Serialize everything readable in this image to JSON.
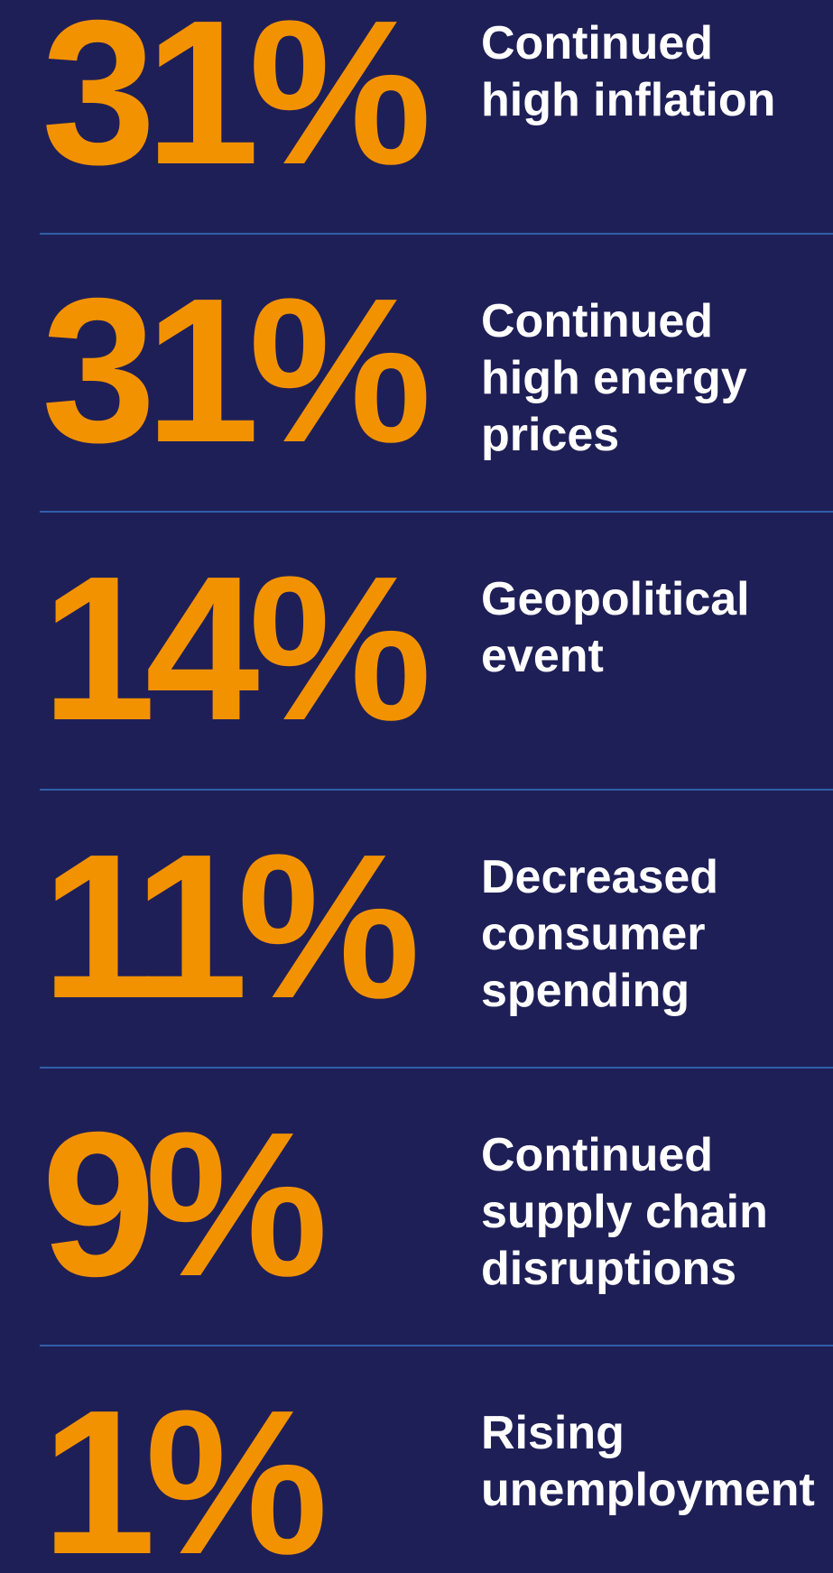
{
  "items": [
    {
      "value": "31%",
      "label": [
        "Continued",
        "high inflation"
      ]
    },
    {
      "value": "31%",
      "label": [
        "Continued",
        "high energy",
        "prices"
      ]
    },
    {
      "value": "14%",
      "label": [
        "Geopolitical",
        "event"
      ]
    },
    {
      "value": "11%",
      "label": [
        "Decreased",
        "consumer",
        "spending"
      ]
    },
    {
      "value": "9%",
      "label": [
        "Continued",
        "supply chain",
        "disruptions"
      ]
    },
    {
      "value": "1%",
      "label": [
        "Rising",
        "unemployment"
      ]
    }
  ]
}
